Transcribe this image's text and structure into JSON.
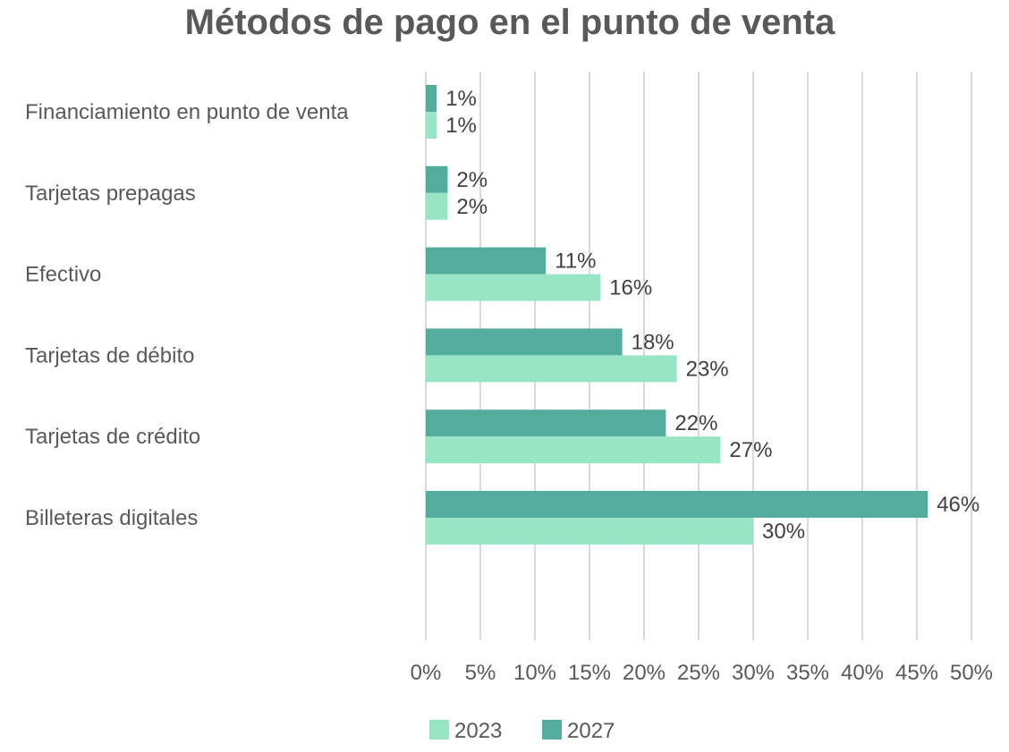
{
  "chart_data": {
    "type": "bar",
    "orientation": "horizontal",
    "title": "Métodos de pago en el punto de venta",
    "xlabel": "",
    "ylabel": "",
    "categories": [
      "Financiamiento en punto de venta",
      "Tarjetas prepagas",
      "Efectivo",
      "Tarjetas de débito",
      "Tarjetas de crédito",
      "Billeteras digitales"
    ],
    "series": [
      {
        "name": "2023",
        "color": "#98E5C6",
        "values": [
          1,
          2,
          16,
          23,
          27,
          30
        ]
      },
      {
        "name": "2027",
        "color": "#52AD9C",
        "values": [
          1,
          2,
          11,
          18,
          22,
          46
        ]
      }
    ],
    "xlim": [
      0,
      50
    ],
    "xticks": [
      0,
      5,
      10,
      15,
      20,
      25,
      30,
      35,
      40,
      45,
      50
    ],
    "tick_suffix": "%",
    "value_suffix": "%",
    "grid": "vertical",
    "legend": "bottom",
    "gridline_color": "#D9D9D9"
  }
}
